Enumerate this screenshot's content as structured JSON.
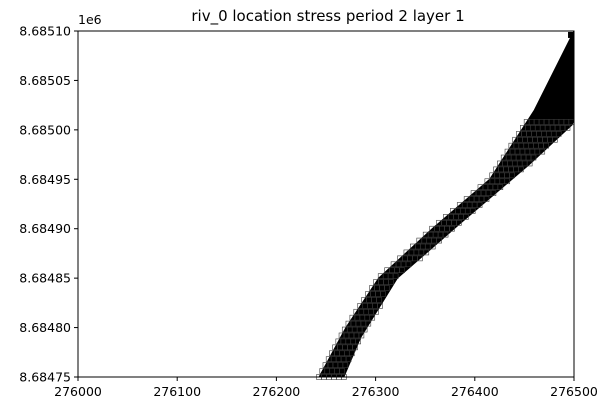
{
  "chart_data": {
    "type": "scatter",
    "title": "riv_0 location stress period 2 layer 1",
    "xlabel": "",
    "ylabel": "",
    "xlim": [
      276000,
      276500
    ],
    "ylim": [
      8684750,
      8685100
    ],
    "x_ticks": [
      276000,
      276100,
      276200,
      276300,
      276400,
      276500
    ],
    "x_tick_labels": [
      "276000",
      "276100",
      "276200",
      "276300",
      "276400",
      "276500"
    ],
    "y_ticks": [
      8684750,
      8684800,
      8684850,
      8684900,
      8684950,
      8685000,
      8685050,
      8685100
    ],
    "y_tick_labels": [
      "8.68475",
      "8.68480",
      "8.68485",
      "8.68490",
      "8.68495",
      "8.68500",
      "8.68505",
      "8.68510"
    ],
    "y_offset_label": "1e6",
    "grid": false,
    "marker_color": "#000000",
    "river_band": {
      "left_edge": [
        [
          276243,
          8684750
        ],
        [
          276270,
          8684800
        ],
        [
          276303,
          8684850
        ],
        [
          276357,
          8684900
        ],
        [
          276415,
          8684950
        ],
        [
          276460,
          8685020
        ],
        [
          276490,
          8685080
        ],
        [
          276500,
          8685100
        ]
      ],
      "right_edge": [
        [
          276268,
          8684750
        ],
        [
          276285,
          8684790
        ],
        [
          276322,
          8684850
        ],
        [
          276385,
          8684905
        ],
        [
          276455,
          8684965
        ],
        [
          276498,
          8685005
        ],
        [
          276500,
          8685010
        ]
      ]
    },
    "corner_marker": [
      276497,
      8685096
    ]
  }
}
